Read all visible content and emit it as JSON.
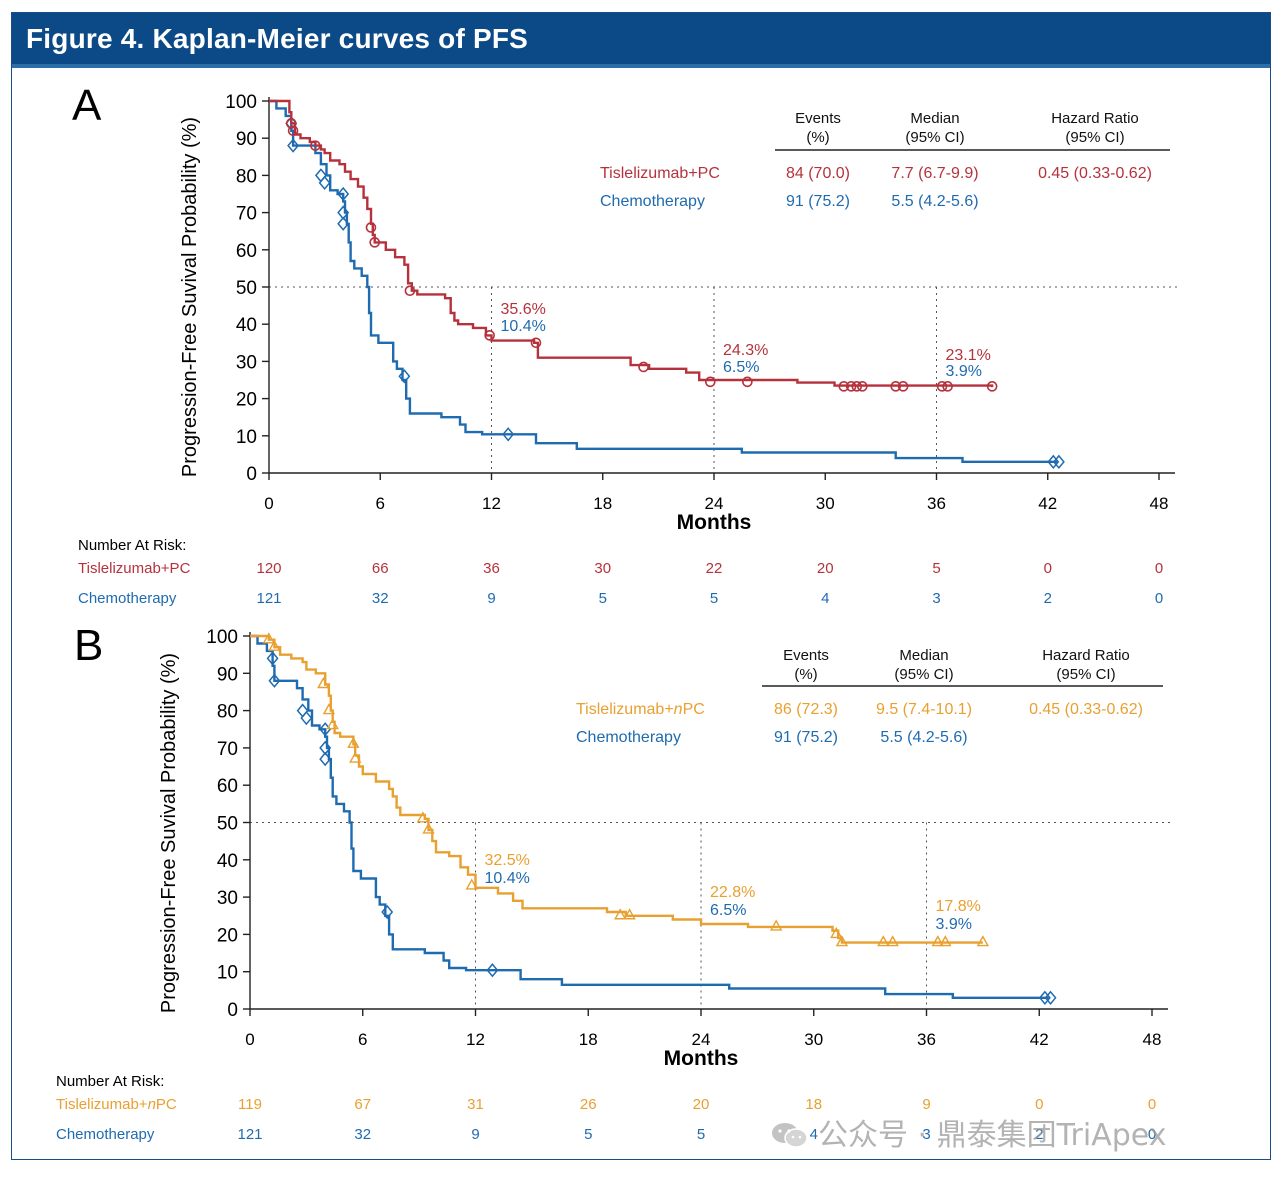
{
  "figure_title": "Figure 4. Kaplan-Meier curves of PFS",
  "watermark": "公众号 · 鼎泰集团TriApex",
  "chart_data": [
    {
      "type": "line",
      "panel_label": "A",
      "ylabel": "Progression-Free Suvival Probability (%)",
      "xlabel": "Months",
      "xlim": [
        0,
        48
      ],
      "ylim": [
        0,
        100
      ],
      "x_ticks": [
        0,
        6,
        12,
        18,
        24,
        30,
        36,
        42,
        48
      ],
      "y_ticks": [
        0,
        10,
        20,
        30,
        40,
        50,
        60,
        70,
        80,
        90,
        100
      ],
      "reference_lines": {
        "y": 50,
        "x": [
          12,
          24,
          36
        ]
      },
      "table_header": {
        "events": [
          "Events",
          "(%)"
        ],
        "median": [
          "Median",
          "(95% CI)"
        ],
        "hr": [
          "Hazard Ratio",
          "(95% CI)"
        ]
      },
      "series": [
        {
          "name": "Tislelizumab+PC",
          "color": "#b5323c",
          "marker": "circle",
          "events": "84 (70.0)",
          "median": "7.7 (6.7-9.9)",
          "hazard_ratio": "0.45 (0.33-0.62)",
          "steps": [
            [
              0,
              100
            ],
            [
              1.1,
              100
            ],
            [
              1.1,
              97
            ],
            [
              1.2,
              94
            ],
            [
              1.4,
              91
            ],
            [
              1.7,
              90
            ],
            [
              2.2,
              89
            ],
            [
              2.5,
              88
            ],
            [
              2.8,
              87
            ],
            [
              3.0,
              86
            ],
            [
              3.3,
              84
            ],
            [
              3.8,
              83
            ],
            [
              4.1,
              81
            ],
            [
              4.4,
              79
            ],
            [
              4.8,
              77
            ],
            [
              5.1,
              74
            ],
            [
              5.3,
              71
            ],
            [
              5.5,
              67
            ],
            [
              5.6,
              64
            ],
            [
              5.7,
              62
            ],
            [
              6.3,
              60
            ],
            [
              6.8,
              58
            ],
            [
              7.3,
              56
            ],
            [
              7.5,
              51
            ],
            [
              7.7,
              49
            ],
            [
              8.0,
              48
            ],
            [
              9.5,
              47
            ],
            [
              9.8,
              43
            ],
            [
              10.0,
              41
            ],
            [
              10.2,
              40
            ],
            [
              11.0,
              39
            ],
            [
              11.7,
              37
            ],
            [
              12.0,
              35.6
            ],
            [
              14.3,
              35
            ],
            [
              14.5,
              31
            ],
            [
              17.5,
              31
            ],
            [
              19.5,
              29
            ],
            [
              20.5,
              28
            ],
            [
              22.5,
              27
            ],
            [
              23.2,
              25
            ],
            [
              28.5,
              24.3
            ],
            [
              30.5,
              23.5
            ],
            [
              39.0,
              23.1
            ]
          ],
          "censors": [
            [
              1.2,
              94
            ],
            [
              1.3,
              92
            ],
            [
              2.5,
              88
            ],
            [
              5.5,
              66
            ],
            [
              5.7,
              62
            ],
            [
              7.6,
              49
            ],
            [
              11.9,
              37
            ],
            [
              14.4,
              35
            ],
            [
              20.2,
              28.5
            ],
            [
              23.8,
              24.5
            ],
            [
              25.8,
              24.5
            ],
            [
              31.0,
              23.3
            ],
            [
              31.4,
              23.3
            ],
            [
              31.7,
              23.3
            ],
            [
              32.0,
              23.3
            ],
            [
              33.8,
              23.3
            ],
            [
              34.2,
              23.3
            ],
            [
              36.3,
              23.3
            ],
            [
              36.6,
              23.3
            ],
            [
              39.0,
              23.3
            ]
          ],
          "landmarks": [
            {
              "month": 12,
              "label": "35.6%"
            },
            {
              "month": 24,
              "label": "24.3%"
            },
            {
              "month": 36,
              "label": "23.1%"
            }
          ],
          "at_risk": [
            120,
            66,
            36,
            30,
            22,
            20,
            5,
            0,
            0
          ]
        },
        {
          "name": "Chemotherapy",
          "color": "#1f6bb0",
          "marker": "diamond",
          "events": "91 (75.2)",
          "median": "5.5 (4.2-5.6)",
          "steps": [
            [
              0,
              100
            ],
            [
              0.4,
              98
            ],
            [
              0.9,
              96
            ],
            [
              1.2,
              92
            ],
            [
              1.3,
              88
            ],
            [
              2.5,
              86
            ],
            [
              2.8,
              83
            ],
            [
              3.1,
              80
            ],
            [
              3.3,
              76
            ],
            [
              3.7,
              75
            ],
            [
              4.0,
              73
            ],
            [
              4.1,
              70
            ],
            [
              4.2,
              67
            ],
            [
              4.3,
              62
            ],
            [
              4.4,
              57
            ],
            [
              4.6,
              55
            ],
            [
              5.0,
              53
            ],
            [
              5.3,
              50
            ],
            [
              5.4,
              43
            ],
            [
              5.5,
              37
            ],
            [
              5.9,
              35
            ],
            [
              6.7,
              30
            ],
            [
              6.9,
              28
            ],
            [
              7.2,
              25
            ],
            [
              7.4,
              20
            ],
            [
              7.6,
              16
            ],
            [
              9.3,
              15
            ],
            [
              10.3,
              13
            ],
            [
              10.6,
              11
            ],
            [
              11.5,
              10.4
            ],
            [
              14.4,
              8
            ],
            [
              16.6,
              6.5
            ],
            [
              25.5,
              5.5
            ],
            [
              33.8,
              4
            ],
            [
              37.4,
              3
            ],
            [
              42.5,
              3
            ]
          ],
          "censors": [
            [
              1.2,
              94
            ],
            [
              1.3,
              88
            ],
            [
              2.8,
              80
            ],
            [
              3.0,
              78
            ],
            [
              4.0,
              75
            ],
            [
              4.0,
              70
            ],
            [
              4.0,
              67
            ],
            [
              7.3,
              26
            ],
            [
              12.9,
              10.4
            ],
            [
              42.3,
              3
            ],
            [
              42.6,
              3
            ]
          ],
          "landmarks": [
            {
              "month": 12,
              "label": "10.4%"
            },
            {
              "month": 24,
              "label": "6.5%"
            },
            {
              "month": 36,
              "label": "3.9%"
            }
          ],
          "at_risk": [
            121,
            32,
            9,
            5,
            5,
            4,
            3,
            2,
            0
          ]
        }
      ],
      "at_risk_title": "Number At Risk:"
    },
    {
      "type": "line",
      "panel_label": "B",
      "ylabel": "Progression-Free Suvival Probability (%)",
      "xlabel": "Months",
      "xlim": [
        0,
        48
      ],
      "ylim": [
        0,
        100
      ],
      "x_ticks": [
        0,
        6,
        12,
        18,
        24,
        30,
        36,
        42,
        48
      ],
      "y_ticks": [
        0,
        10,
        20,
        30,
        40,
        50,
        60,
        70,
        80,
        90,
        100
      ],
      "reference_lines": {
        "y": 50,
        "x": [
          12,
          24,
          36
        ]
      },
      "table_header": {
        "events": [
          "Events",
          "(%)"
        ],
        "median": [
          "Median",
          "(95% CI)"
        ],
        "hr": [
          "Hazard Ratio",
          "(95% CI)"
        ]
      },
      "series": [
        {
          "name": "Tislelizumab+nPC",
          "name_parts": [
            "Tislelizumab+",
            "n",
            "PC"
          ],
          "color": "#e8a030",
          "marker": "triangle",
          "events": "86 (72.3)",
          "median": "9.5 (7.4-10.1)",
          "hazard_ratio": "0.45 (0.33-0.62)",
          "steps": [
            [
              0,
              100
            ],
            [
              0.8,
              100
            ],
            [
              1.0,
              99
            ],
            [
              1.3,
              97
            ],
            [
              1.6,
              95
            ],
            [
              2.2,
              94
            ],
            [
              2.8,
              93
            ],
            [
              3.0,
              91
            ],
            [
              3.5,
              90
            ],
            [
              4.0,
              87
            ],
            [
              4.2,
              84
            ],
            [
              4.3,
              80
            ],
            [
              4.4,
              77
            ],
            [
              4.5,
              74
            ],
            [
              4.8,
              73
            ],
            [
              5.5,
              71
            ],
            [
              5.6,
              68
            ],
            [
              5.8,
              65
            ],
            [
              6.0,
              63
            ],
            [
              6.7,
              61
            ],
            [
              7.4,
              59
            ],
            [
              7.6,
              57
            ],
            [
              7.8,
              54
            ],
            [
              8.0,
              52
            ],
            [
              9.3,
              51
            ],
            [
              9.5,
              48
            ],
            [
              9.7,
              45
            ],
            [
              9.9,
              42
            ],
            [
              10.6,
              41
            ],
            [
              11.2,
              38
            ],
            [
              11.6,
              36
            ],
            [
              12.0,
              32.5
            ],
            [
              13.2,
              31
            ],
            [
              14.0,
              29
            ],
            [
              14.5,
              27
            ],
            [
              19.0,
              26
            ],
            [
              20.0,
              25
            ],
            [
              22.5,
              24
            ],
            [
              24.0,
              22.8
            ],
            [
              26.5,
              22
            ],
            [
              31.0,
              21
            ],
            [
              31.3,
              19
            ],
            [
              31.5,
              17.8
            ],
            [
              39.0,
              17.8
            ]
          ],
          "censors": [
            [
              1.0,
              99
            ],
            [
              1.3,
              97
            ],
            [
              3.9,
              87
            ],
            [
              4.2,
              80
            ],
            [
              4.4,
              76
            ],
            [
              5.5,
              71
            ],
            [
              5.6,
              67
            ],
            [
              9.2,
              51
            ],
            [
              9.5,
              48
            ],
            [
              11.8,
              33
            ],
            [
              19.7,
              25
            ],
            [
              20.2,
              25
            ],
            [
              28.0,
              22
            ],
            [
              31.2,
              20
            ],
            [
              31.5,
              17.8
            ],
            [
              33.7,
              17.8
            ],
            [
              34.2,
              17.8
            ],
            [
              36.6,
              17.8
            ],
            [
              37.0,
              17.8
            ],
            [
              39.0,
              17.8
            ]
          ],
          "landmarks": [
            {
              "month": 12,
              "label": "32.5%"
            },
            {
              "month": 24,
              "label": "22.8%"
            },
            {
              "month": 36,
              "label": "17.8%"
            }
          ],
          "at_risk": [
            119,
            67,
            31,
            26,
            20,
            18,
            9,
            0,
            0
          ]
        },
        {
          "name": "Chemotherapy",
          "color": "#1f6bb0",
          "marker": "diamond",
          "events": "91 (75.2)",
          "median": "5.5 (4.2-5.6)",
          "steps": [
            [
              0,
              100
            ],
            [
              0.4,
              98
            ],
            [
              0.9,
              96
            ],
            [
              1.2,
              92
            ],
            [
              1.3,
              88
            ],
            [
              2.5,
              86
            ],
            [
              2.8,
              83
            ],
            [
              3.1,
              80
            ],
            [
              3.3,
              76
            ],
            [
              3.7,
              75
            ],
            [
              4.0,
              73
            ],
            [
              4.1,
              70
            ],
            [
              4.2,
              67
            ],
            [
              4.3,
              62
            ],
            [
              4.4,
              57
            ],
            [
              4.6,
              55
            ],
            [
              5.0,
              53
            ],
            [
              5.3,
              50
            ],
            [
              5.4,
              43
            ],
            [
              5.5,
              37
            ],
            [
              5.9,
              35
            ],
            [
              6.7,
              30
            ],
            [
              6.9,
              28
            ],
            [
              7.2,
              25
            ],
            [
              7.4,
              20
            ],
            [
              7.6,
              16
            ],
            [
              9.3,
              15
            ],
            [
              10.3,
              13
            ],
            [
              10.6,
              11
            ],
            [
              11.5,
              10.4
            ],
            [
              14.4,
              8
            ],
            [
              16.6,
              6.5
            ],
            [
              25.5,
              5.5
            ],
            [
              33.8,
              4
            ],
            [
              37.4,
              3
            ],
            [
              42.5,
              3
            ]
          ],
          "censors": [
            [
              1.2,
              94
            ],
            [
              1.3,
              88
            ],
            [
              2.8,
              80
            ],
            [
              3.0,
              78
            ],
            [
              4.0,
              75
            ],
            [
              4.0,
              70
            ],
            [
              4.0,
              67
            ],
            [
              7.3,
              26
            ],
            [
              12.9,
              10.4
            ],
            [
              42.3,
              3
            ],
            [
              42.6,
              3
            ]
          ],
          "landmarks": [
            {
              "month": 12,
              "label": "10.4%"
            },
            {
              "month": 24,
              "label": "6.5%"
            },
            {
              "month": 36,
              "label": "3.9%"
            }
          ],
          "at_risk": [
            121,
            32,
            9,
            5,
            5,
            4,
            3,
            2,
            0
          ]
        }
      ],
      "at_risk_title": "Number At Risk:"
    }
  ]
}
